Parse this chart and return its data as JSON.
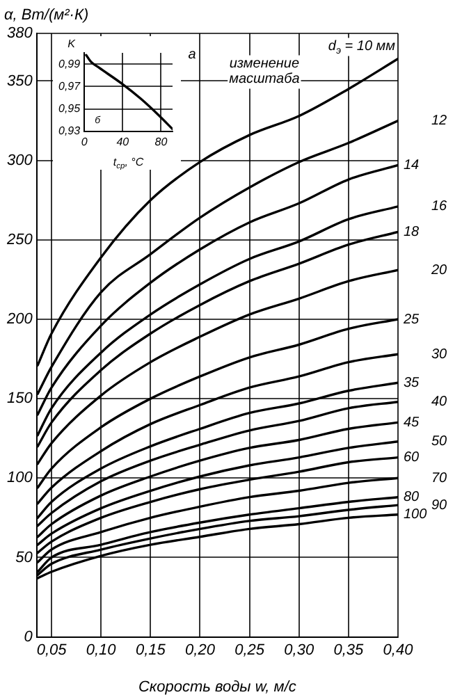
{
  "chart_data": [
    {
      "type": "line",
      "xlabel": "Скорость воды w, м/с",
      "ylabel": "α, Вт/(м²·К)",
      "x": [
        0.036,
        0.05,
        0.1,
        0.15,
        0.2,
        0.25,
        0.3,
        0.35,
        0.4
      ],
      "xlim": [
        0.035,
        0.4
      ],
      "xticks": [
        {
          "value": 0.05,
          "label": "0,05"
        },
        {
          "value": 0.1,
          "label": "0,10"
        },
        {
          "value": 0.15,
          "label": "0,15"
        },
        {
          "value": 0.2,
          "label": "0,20"
        },
        {
          "value": 0.25,
          "label": "0,25"
        },
        {
          "value": 0.3,
          "label": "0,30"
        },
        {
          "value": 0.35,
          "label": "0,35"
        },
        {
          "value": 0.4,
          "label": "0,40"
        }
      ],
      "ylim": [
        0,
        380
      ],
      "yticks": [
        0,
        50,
        100,
        150,
        200,
        250,
        300,
        350,
        380
      ],
      "grid": true,
      "annotations": [
        "а",
        "изменение масштаба"
      ],
      "series": [
        {
          "name": "d$_{э}$ = 10 мм",
          "color": "#000000",
          "values": [
            171,
            191,
            239,
            275,
            299,
            316,
            328,
            345,
            364
          ]
        },
        {
          "name": "12",
          "color": "#000000",
          "values": [
            153,
            170,
            217,
            241,
            264,
            283,
            299,
            311,
            325
          ]
        },
        {
          "name": "14",
          "color": "#000000",
          "values": [
            140,
            157,
            196,
            223,
            244,
            261,
            273,
            288,
            297
          ]
        },
        {
          "name": "16",
          "color": "#000000",
          "values": [
            127,
            144,
            179,
            203,
            222,
            238,
            249,
            263,
            271
          ]
        },
        {
          "name": "18",
          "color": "#000000",
          "values": [
            120,
            135,
            168,
            191,
            209,
            224,
            235,
            247,
            255
          ]
        },
        {
          "name": "20",
          "color": "#000000",
          "values": [
            109,
            122,
            152,
            173,
            189,
            203,
            213,
            224,
            231
          ]
        },
        {
          "name": "25",
          "color": "#000000",
          "values": [
            94,
            106,
            132,
            150,
            164,
            176,
            184,
            194,
            200
          ]
        },
        {
          "name": "30",
          "color": "#000000",
          "values": [
            84,
            94,
            117,
            134,
            146,
            157,
            164,
            173,
            178
          ]
        },
        {
          "name": "35",
          "color": "#000000",
          "values": [
            75,
            85,
            106,
            120,
            131,
            141,
            147,
            155,
            160
          ]
        },
        {
          "name": "40",
          "color": "#000000",
          "values": [
            70,
            78,
            98,
            111,
            121,
            130,
            136,
            144,
            148
          ]
        },
        {
          "name": "45",
          "color": "#000000",
          "values": [
            63,
            71,
            89,
            101,
            111,
            119,
            124,
            131,
            135
          ]
        },
        {
          "name": "50",
          "color": "#000000",
          "values": [
            58,
            65,
            81,
            92,
            101,
            108,
            113,
            119,
            123
          ]
        },
        {
          "name": "60",
          "color": "#000000",
          "values": [
            53,
            60,
            75,
            85,
            93,
            99,
            104,
            110,
            113
          ]
        },
        {
          "name": "70",
          "color": "#000000",
          "values": [
            47,
            55,
            66,
            75,
            82,
            88,
            92,
            97,
            100
          ]
        },
        {
          "name": "80",
          "color": "#000000",
          "values": [
            41,
            50,
            58,
            66,
            72,
            77,
            81,
            85,
            88
          ]
        },
        {
          "name": "90",
          "color": "#000000",
          "values": [
            39,
            46,
            55,
            62,
            68,
            73,
            76,
            80,
            83
          ]
        },
        {
          "name": "100",
          "color": "#000000",
          "values": [
            37,
            41,
            51,
            58,
            63,
            68,
            71,
            75,
            77
          ]
        }
      ]
    },
    {
      "type": "line",
      "xlabel": "t$_{ср}$, °C",
      "ylabel": "K",
      "x": [
        2,
        7,
        15,
        40,
        59,
        78,
        92
      ],
      "xlim": [
        0,
        92
      ],
      "xticks": [
        0,
        40,
        80
      ],
      "ylim": [
        0.93,
        1.0
      ],
      "yticks": [
        {
          "value": 0.93,
          "label": "0,93"
        },
        {
          "value": 0.95,
          "label": "0,95"
        },
        {
          "value": 0.97,
          "label": "0,97"
        },
        {
          "value": 0.99,
          "label": "0,99"
        }
      ],
      "grid": true,
      "annotations": [
        "б"
      ],
      "series": [
        {
          "color": "#000000",
          "values": [
            0.998,
            0.992,
            0.987,
            0.972,
            0.959,
            0.944,
            0.932
          ]
        }
      ]
    }
  ]
}
